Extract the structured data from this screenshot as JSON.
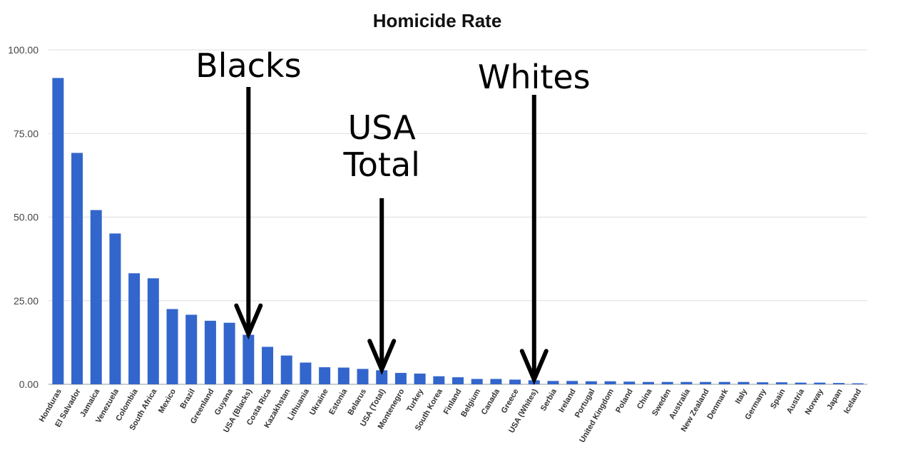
{
  "chart_data": {
    "type": "bar",
    "title": "Homicide Rate",
    "xlabel": "",
    "ylabel": "",
    "ylim": [
      0,
      100
    ],
    "yticks": [
      "0.00",
      "25.00",
      "50.00",
      "75.00",
      "100.00"
    ],
    "grid": true,
    "legend": "none",
    "bar_color": "#3366cc",
    "categories": [
      "Honduras",
      "El Salvador",
      "Jamaica",
      "Venezuela",
      "Colombia",
      "South Africa",
      "Mexico",
      "Brazil",
      "Greenland",
      "Guyana",
      "USA (Blacks)",
      "Costa Rica",
      "Kazakhstan",
      "Lithuania",
      "Ukraine",
      "Estonia",
      "Belarus",
      "USA (Total)",
      "Montenegro",
      "Turkey",
      "South Korea",
      "Finland",
      "Belgium",
      "Canada",
      "Greece",
      "USA (Whites)",
      "Serbia",
      "Ireland",
      "Portugal",
      "United Kingdom",
      "Poland",
      "China",
      "Sweden",
      "Australia",
      "New Zealand",
      "Denmark",
      "Italy",
      "Germany",
      "Spain",
      "Austria",
      "Norway",
      "Japan",
      "Iceland"
    ],
    "values": [
      91.6,
      69.2,
      52.1,
      45.1,
      33.2,
      31.7,
      22.5,
      20.8,
      19.0,
      18.4,
      14.8,
      11.2,
      8.6,
      6.5,
      5.1,
      5.0,
      4.6,
      4.2,
      3.4,
      3.2,
      2.4,
      2.1,
      1.6,
      1.6,
      1.4,
      1.2,
      1.0,
      1.0,
      0.9,
      0.9,
      0.8,
      0.7,
      0.7,
      0.7,
      0.7,
      0.7,
      0.7,
      0.6,
      0.6,
      0.5,
      0.5,
      0.4,
      0.3
    ],
    "annotations": [
      {
        "lines": [
          "Blacks"
        ],
        "category": "USA (Blacks)"
      },
      {
        "lines": [
          "USA",
          "Total"
        ],
        "category": "USA (Total)"
      },
      {
        "lines": [
          "Whites"
        ],
        "category": "USA (Whites)"
      }
    ]
  }
}
